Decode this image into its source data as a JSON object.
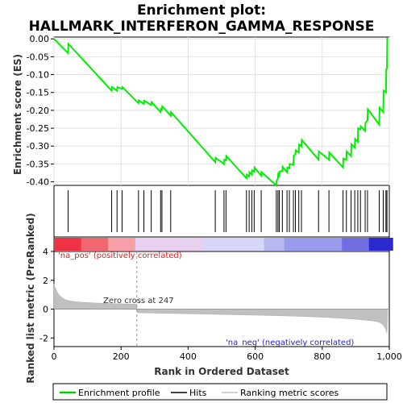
{
  "chart_data": {
    "type": "line",
    "title_line1": "Enrichment plot:",
    "title_line2": "HALLMARK_INTERFERON_GAMMA_RESPONSE",
    "es_ylabel": "Enrichment score (ES)",
    "metric_ylabel": "Ranked list metric (PreRanked)",
    "xlabel": "Rank in Ordered Dataset",
    "x_ticks": [
      0,
      200,
      400,
      600,
      800,
      1000
    ],
    "x_tick_labels": [
      "0",
      "200",
      "400",
      "600",
      "800",
      "1,000"
    ],
    "es_ticks": [
      0.0,
      -0.05,
      -0.1,
      -0.15,
      -0.2,
      -0.25,
      -0.3,
      -0.35,
      -0.4
    ],
    "es_tick_labels": [
      "0.00",
      "-0.05",
      "-0.10",
      "-0.15",
      "-0.20",
      "-0.25",
      "-0.30",
      "-0.35",
      "-0.40"
    ],
    "metric_ticks": [
      4,
      2,
      0,
      -2
    ],
    "metric_tick_labels": [
      "4",
      "2",
      "0",
      "-2"
    ],
    "xlim": [
      0,
      1000
    ],
    "es_ylim": [
      -0.41,
      0.005
    ],
    "metric_ylim": [
      -2.6,
      4.0
    ],
    "zero_cross_rank": 247,
    "zero_cross_label": "Zero cross at 247",
    "pos_label": "'na_pos' (positively correlated)",
    "neg_label": "'na_neg' (negatively correlated)",
    "hits": [
      42,
      172,
      188,
      203,
      252,
      268,
      290,
      318,
      322,
      348,
      481,
      507,
      513,
      574,
      582,
      590,
      597,
      618,
      663,
      668,
      672,
      681,
      695,
      702,
      714,
      720,
      730,
      738,
      789,
      820,
      862,
      872,
      886,
      897,
      906,
      914,
      928,
      935,
      970,
      982,
      990,
      993
    ],
    "es_points": [
      [
        0,
        0.0
      ],
      [
        42,
        -0.04
      ],
      [
        43,
        -0.014
      ],
      [
        172,
        -0.145
      ],
      [
        173,
        -0.135
      ],
      [
        188,
        -0.145
      ],
      [
        189,
        -0.135
      ],
      [
        203,
        -0.14
      ],
      [
        204,
        -0.135
      ],
      [
        252,
        -0.18
      ],
      [
        253,
        -0.172
      ],
      [
        268,
        -0.182
      ],
      [
        269,
        -0.173
      ],
      [
        290,
        -0.185
      ],
      [
        291,
        -0.177
      ],
      [
        318,
        -0.205
      ],
      [
        319,
        -0.196
      ],
      [
        322,
        -0.198
      ],
      [
        323,
        -0.189
      ],
      [
        348,
        -0.215
      ],
      [
        349,
        -0.205
      ],
      [
        481,
        -0.345
      ],
      [
        482,
        -0.333
      ],
      [
        507,
        -0.35
      ],
      [
        508,
        -0.338
      ],
      [
        513,
        -0.34
      ],
      [
        514,
        -0.328
      ],
      [
        574,
        -0.39
      ],
      [
        575,
        -0.38
      ],
      [
        582,
        -0.385
      ],
      [
        583,
        -0.373
      ],
      [
        590,
        -0.38
      ],
      [
        591,
        -0.368
      ],
      [
        597,
        -0.372
      ],
      [
        598,
        -0.36
      ],
      [
        618,
        -0.383
      ],
      [
        619,
        -0.373
      ],
      [
        663,
        -0.41
      ],
      [
        664,
        -0.398
      ],
      [
        668,
        -0.39
      ],
      [
        669,
        -0.378
      ],
      [
        672,
        -0.383
      ],
      [
        673,
        -0.371
      ],
      [
        681,
        -0.37
      ],
      [
        682,
        -0.358
      ],
      [
        695,
        -0.373
      ],
      [
        696,
        -0.36
      ],
      [
        702,
        -0.362
      ],
      [
        703,
        -0.35
      ],
      [
        714,
        -0.352
      ],
      [
        715,
        -0.327
      ],
      [
        720,
        -0.323
      ],
      [
        721,
        -0.312
      ],
      [
        730,
        -0.318
      ],
      [
        731,
        -0.296
      ],
      [
        738,
        -0.301
      ],
      [
        739,
        -0.283
      ],
      [
        789,
        -0.338
      ],
      [
        790,
        -0.315
      ],
      [
        820,
        -0.338
      ],
      [
        821,
        -0.318
      ],
      [
        862,
        -0.36
      ],
      [
        863,
        -0.335
      ],
      [
        872,
        -0.338
      ],
      [
        873,
        -0.315
      ],
      [
        886,
        -0.328
      ],
      [
        887,
        -0.295
      ],
      [
        897,
        -0.304
      ],
      [
        898,
        -0.28
      ],
      [
        906,
        -0.288
      ],
      [
        907,
        -0.25
      ],
      [
        914,
        -0.253
      ],
      [
        915,
        -0.245
      ],
      [
        928,
        -0.258
      ],
      [
        929,
        -0.235
      ],
      [
        935,
        -0.228
      ],
      [
        936,
        -0.197
      ],
      [
        970,
        -0.24
      ],
      [
        971,
        -0.193
      ],
      [
        982,
        -0.205
      ],
      [
        983,
        -0.145
      ],
      [
        990,
        -0.15
      ],
      [
        991,
        -0.085
      ],
      [
        993,
        -0.083
      ],
      [
        994,
        0.003
      ]
    ]
  },
  "legend": {
    "items": [
      {
        "label": "Enrichment profile",
        "color": "#00cc00"
      },
      {
        "label": "Hits",
        "color": "#000000"
      },
      {
        "label": "Ranking metric scores",
        "color": "#c0c0c0"
      }
    ]
  },
  "colors": {
    "es_line": "#00ee00",
    "hit_line": "#000000",
    "metric_fill": "#c0c0c0",
    "zero_line": "#aaaaaa"
  }
}
